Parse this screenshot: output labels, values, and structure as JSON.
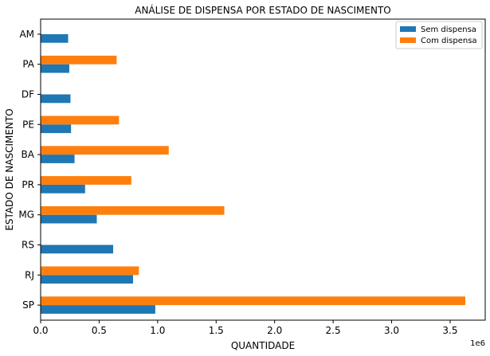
{
  "chart_data": {
    "type": "bar",
    "orientation": "horizontal",
    "title": "ANÁLISE DE DISPENSA POR ESTADO DE NASCIMENTO",
    "xlabel": "QUANTIDADE",
    "ylabel": "ESTADO DE NASCIMENTO",
    "x_offset_label": "1e6",
    "categories": [
      "SP",
      "RJ",
      "RS",
      "MG",
      "PR",
      "BA",
      "PE",
      "DF",
      "PA",
      "AM"
    ],
    "series": [
      {
        "name": "Sem dispensa",
        "color": "#1f77b4",
        "values": [
          980000,
          790000,
          620000,
          480000,
          380000,
          290000,
          260000,
          255000,
          245000,
          235000
        ]
      },
      {
        "name": "Com dispensa",
        "color": "#ff7f0e",
        "values": [
          3630000,
          840000,
          0,
          1570000,
          775000,
          1095000,
          670000,
          0,
          650000,
          0
        ]
      }
    ],
    "xlim": [
      0,
      3800000
    ],
    "xticks": [
      0,
      500000,
      1000000,
      1500000,
      2000000,
      2500000,
      3000000,
      3500000
    ],
    "xtick_labels": [
      "0.0",
      "0.5",
      "1.0",
      "1.5",
      "2.0",
      "2.5",
      "3.0",
      "3.5"
    ],
    "grid": false,
    "legend_position": "top-right"
  }
}
